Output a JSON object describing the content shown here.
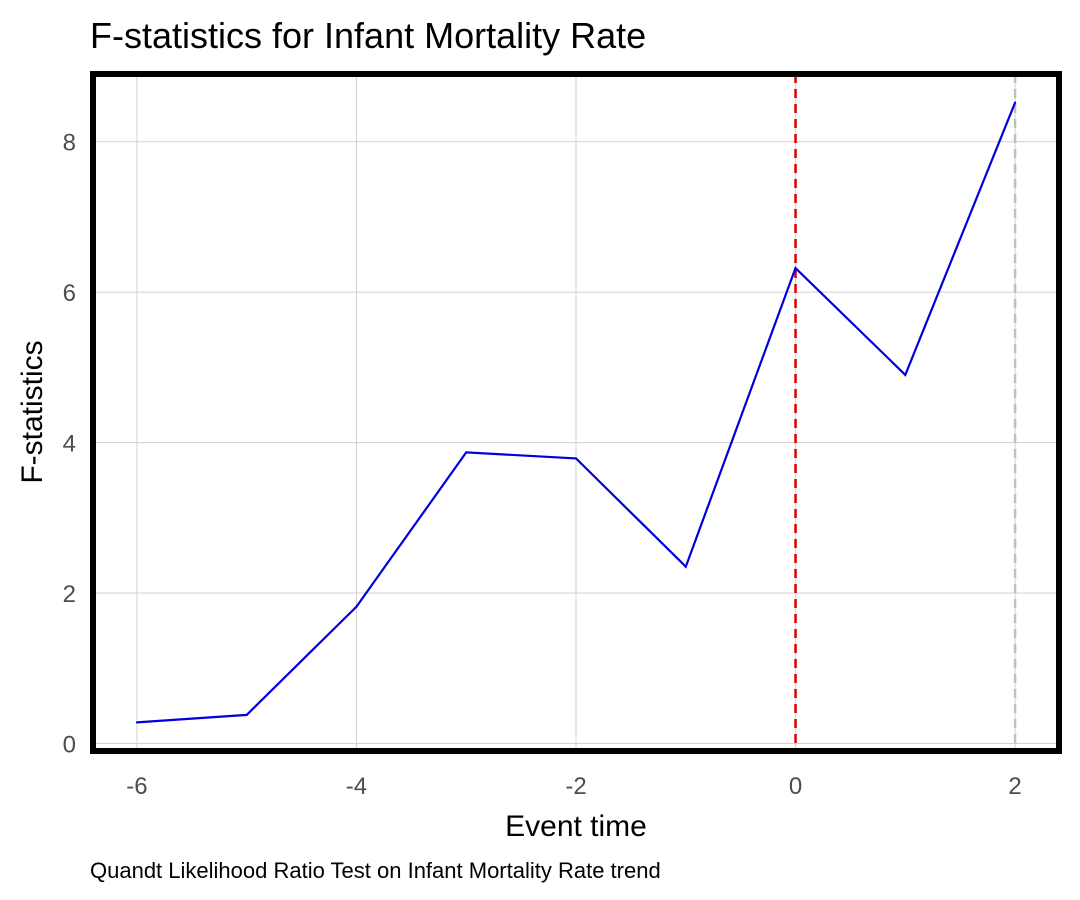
{
  "chart_data": {
    "type": "line",
    "title": "F-statistics for Infant Mortality Rate",
    "xlabel": "Event time",
    "ylabel": "F-statistics",
    "caption": "Quandt Likelihood Ratio Test on Infant Mortality Rate trend",
    "x": [
      -6,
      -5,
      -4,
      -3,
      -2,
      -1,
      0,
      1,
      2
    ],
    "series": [
      {
        "values": [
          0.28,
          0.38,
          1.82,
          3.87,
          3.79,
          2.35,
          6.32,
          4.9,
          8.52
        ],
        "color": "#0000dd"
      }
    ],
    "xlim": [
      -6.4,
      2.4
    ],
    "ylim": [
      -0.1,
      8.9
    ],
    "xticks": [
      -6,
      -4,
      -2,
      0,
      2
    ],
    "xtick_labels": [
      "-6",
      "-4",
      "-2",
      "0",
      "2"
    ],
    "yticks": [
      0,
      2,
      4,
      6,
      8
    ],
    "ytick_labels": [
      "0",
      "2",
      "4",
      "6",
      "8"
    ],
    "grid": true,
    "reference_lines": [
      {
        "x": 0,
        "color": "#dd0000",
        "style": "dashed"
      },
      {
        "x": 2,
        "color": "#c0c0c0",
        "style": "dashed"
      }
    ]
  }
}
